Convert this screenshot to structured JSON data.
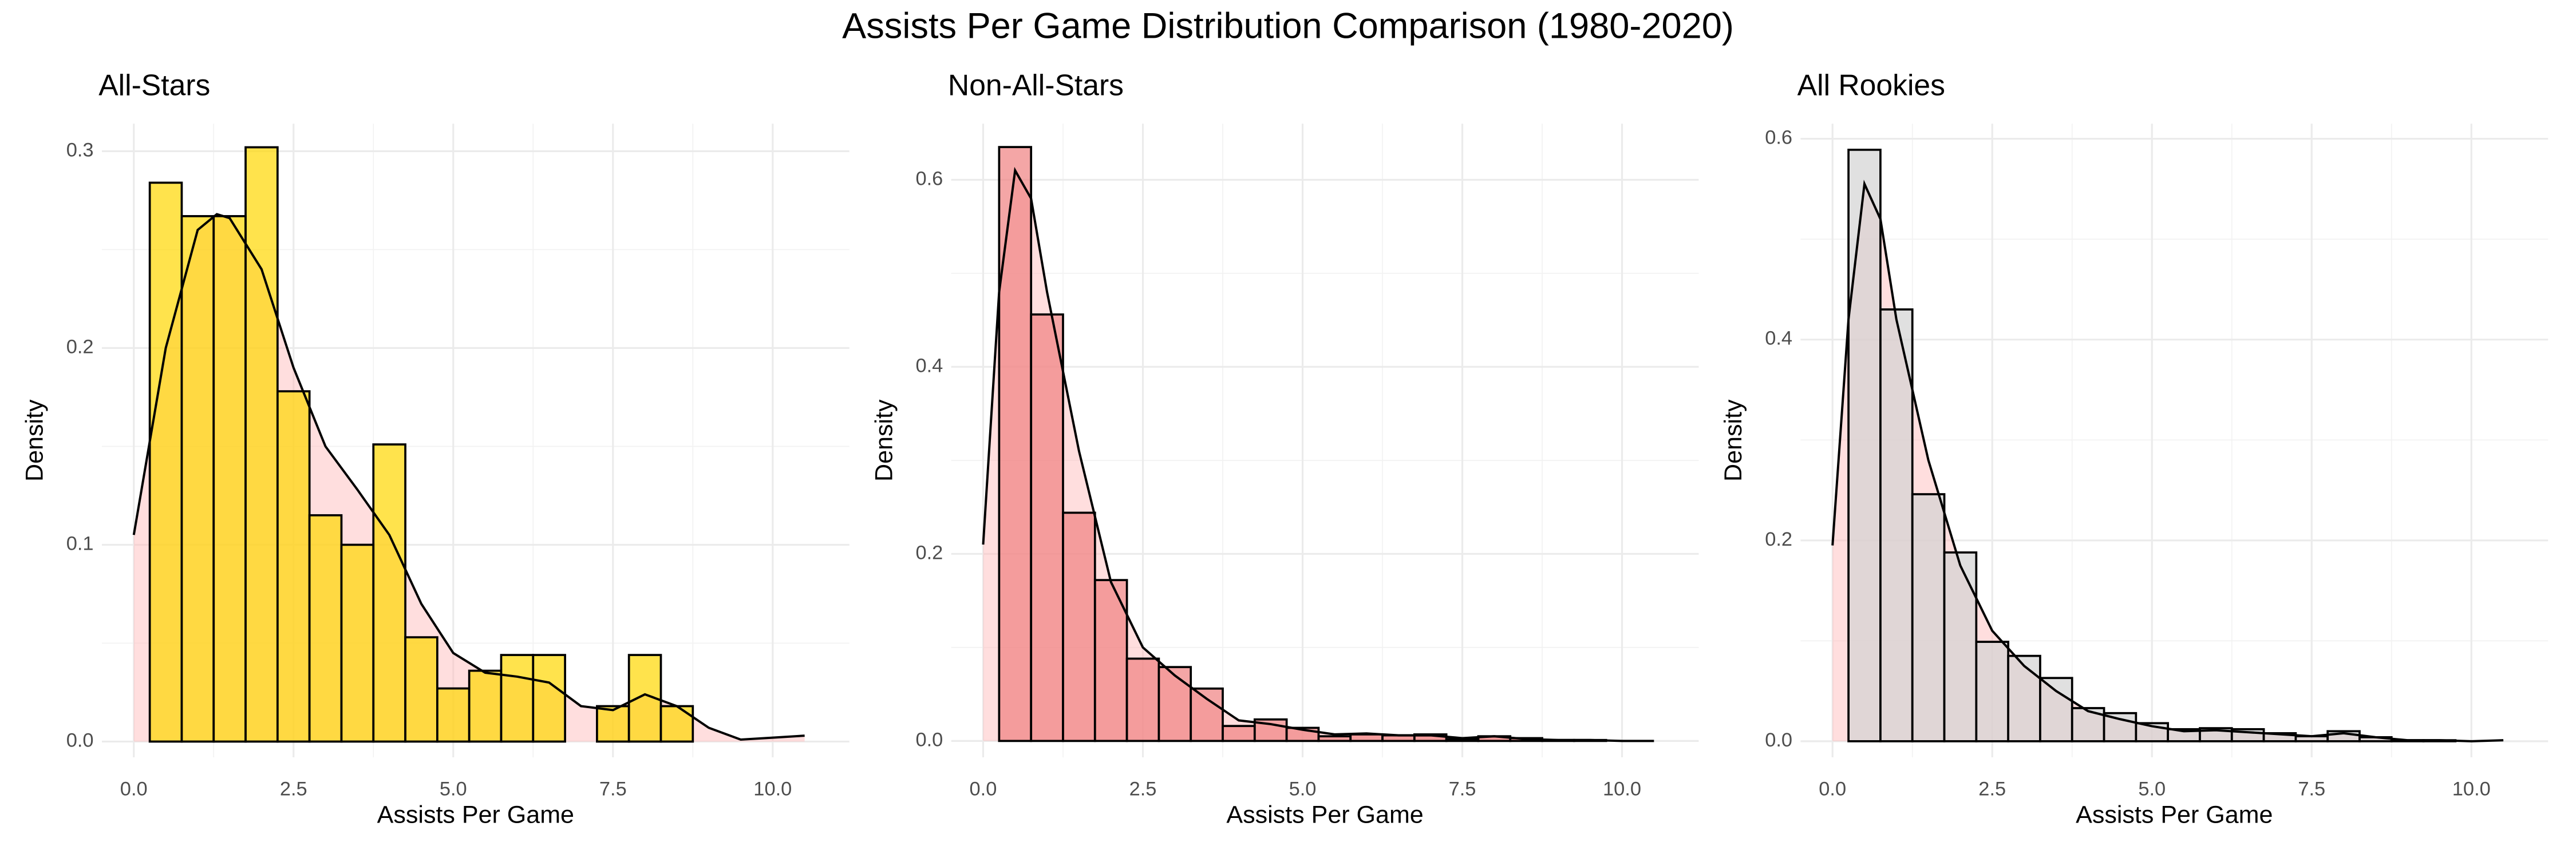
{
  "title": "Assists Per Game Distribution Comparison (1980-2020)",
  "chart_data": [
    {
      "type": "histogram",
      "title": "All-Stars",
      "xlabel": "Assists Per Game",
      "ylabel": "Density",
      "bins": [
        0.25,
        0.75,
        1.25,
        1.75,
        2.25,
        2.75,
        3.25,
        3.75,
        4.25,
        4.75,
        5.25,
        5.75,
        6.25,
        6.75,
        7.25,
        7.75,
        8.25,
        8.75
      ],
      "values": [
        0.284,
        0.267,
        0.267,
        0.302,
        0.178,
        0.115,
        0.1,
        0.151,
        0.053,
        0.027,
        0.036,
        0.044,
        0.044,
        0,
        0.018,
        0.044,
        0.018
      ],
      "color": "#FFD700",
      "density": {
        "fill": "#ffb6b6",
        "x": [
          0,
          0.5,
          1.0,
          1.3,
          1.5,
          2.0,
          2.5,
          3.0,
          3.5,
          4.0,
          4.5,
          5.0,
          5.5,
          6.0,
          6.5,
          7.0,
          7.5,
          8.0,
          8.5,
          9.0,
          9.5,
          10.0,
          10.5
        ],
        "y": [
          0.105,
          0.2,
          0.26,
          0.268,
          0.266,
          0.24,
          0.19,
          0.15,
          0.128,
          0.105,
          0.07,
          0.045,
          0.035,
          0.033,
          0.03,
          0.018,
          0.016,
          0.024,
          0.018,
          0.007,
          0.001,
          0.002,
          0.003
        ]
      },
      "xlim": [
        -0.5,
        11.2
      ],
      "ylim": [
        -0.008,
        0.314
      ],
      "xticks": [
        {
          "value": 0,
          "label": "0.0"
        },
        2.5,
        {
          "value": 5,
          "label": "5.0"
        },
        7.5,
        {
          "value": 10,
          "label": "10.0"
        }
      ],
      "yticks": [
        {
          "value": 0,
          "label": "0.0"
        },
        0.1,
        0.2,
        0.3
      ],
      "grid": true
    },
    {
      "type": "histogram",
      "title": "Non-All-Stars",
      "xlabel": "Assists Per Game",
      "ylabel": "Density",
      "bins": [
        0.25,
        0.75,
        1.25,
        1.75,
        2.25,
        2.75,
        3.25,
        3.75,
        4.25,
        4.75,
        5.25,
        5.75,
        6.25,
        6.75,
        7.25,
        7.75,
        8.25,
        8.75,
        9.25,
        9.75
      ],
      "values": [
        0.635,
        0.456,
        0.244,
        0.172,
        0.088,
        0.079,
        0.056,
        0.016,
        0.023,
        0.014,
        0.005,
        0.007,
        0.006,
        0.007,
        0.002,
        0.005,
        0.003,
        0.001,
        0.001
      ],
      "color": "#F08080",
      "density": {
        "fill": "#ffb6b6",
        "x": [
          0,
          0.25,
          0.5,
          0.75,
          1.0,
          1.5,
          2.0,
          2.5,
          3.0,
          3.5,
          4.0,
          4.5,
          5.0,
          5.5,
          6.0,
          6.5,
          7.0,
          7.5,
          8.0,
          8.5,
          9.0,
          9.5,
          10.0,
          10.5
        ],
        "y": [
          0.21,
          0.48,
          0.61,
          0.58,
          0.48,
          0.31,
          0.17,
          0.1,
          0.07,
          0.045,
          0.022,
          0.018,
          0.012,
          0.007,
          0.008,
          0.006,
          0.006,
          0.003,
          0.005,
          0.002,
          0.001,
          0.001,
          0,
          0
        ]
      },
      "xlim": [
        -0.5,
        11.2
      ],
      "ylim": [
        -0.0175,
        0.66
      ],
      "xticks": [
        {
          "value": 0,
          "label": "0.0"
        },
        2.5,
        {
          "value": 5,
          "label": "5.0"
        },
        7.5,
        {
          "value": 10,
          "label": "10.0"
        }
      ],
      "yticks": [
        {
          "value": 0,
          "label": "0.0"
        },
        0.2,
        0.4,
        0.6
      ],
      "grid": true
    },
    {
      "type": "histogram",
      "title": "All Rookies",
      "xlabel": "Assists Per Game",
      "ylabel": "Density",
      "bins": [
        0.25,
        0.75,
        1.25,
        1.75,
        2.25,
        2.75,
        3.25,
        3.75,
        4.25,
        4.75,
        5.25,
        5.75,
        6.25,
        6.75,
        7.25,
        7.75,
        8.25,
        8.75,
        9.25,
        9.75
      ],
      "values": [
        0.589,
        0.43,
        0.246,
        0.188,
        0.099,
        0.085,
        0.063,
        0.033,
        0.028,
        0.018,
        0.012,
        0.013,
        0.012,
        0.008,
        0.005,
        0.01,
        0.004,
        0.001,
        0.001
      ],
      "color": "#D3D3D3",
      "density": {
        "fill": "#ffb6b6",
        "x": [
          0,
          0.25,
          0.5,
          0.75,
          1.0,
          1.5,
          2.0,
          2.5,
          3.0,
          3.5,
          4.0,
          4.5,
          5.0,
          5.5,
          6.0,
          6.5,
          7.0,
          7.5,
          8.0,
          8.5,
          9.0,
          9.5,
          10.0,
          10.5
        ],
        "y": [
          0.195,
          0.42,
          0.555,
          0.52,
          0.42,
          0.28,
          0.175,
          0.11,
          0.075,
          0.05,
          0.03,
          0.022,
          0.015,
          0.01,
          0.011,
          0.009,
          0.007,
          0.005,
          0.008,
          0.004,
          0.001,
          0.001,
          0,
          0.001
        ]
      },
      "xlim": [
        -0.5,
        11.2
      ],
      "ylim": [
        -0.016,
        0.615
      ],
      "xticks": [
        {
          "value": 0,
          "label": "0.0"
        },
        2.5,
        {
          "value": 5,
          "label": "5.0"
        },
        7.5,
        {
          "value": 10,
          "label": "10.0"
        }
      ],
      "yticks": [
        {
          "value": 0,
          "label": "0.0"
        },
        0.2,
        0.4,
        0.6
      ],
      "grid": true
    }
  ]
}
